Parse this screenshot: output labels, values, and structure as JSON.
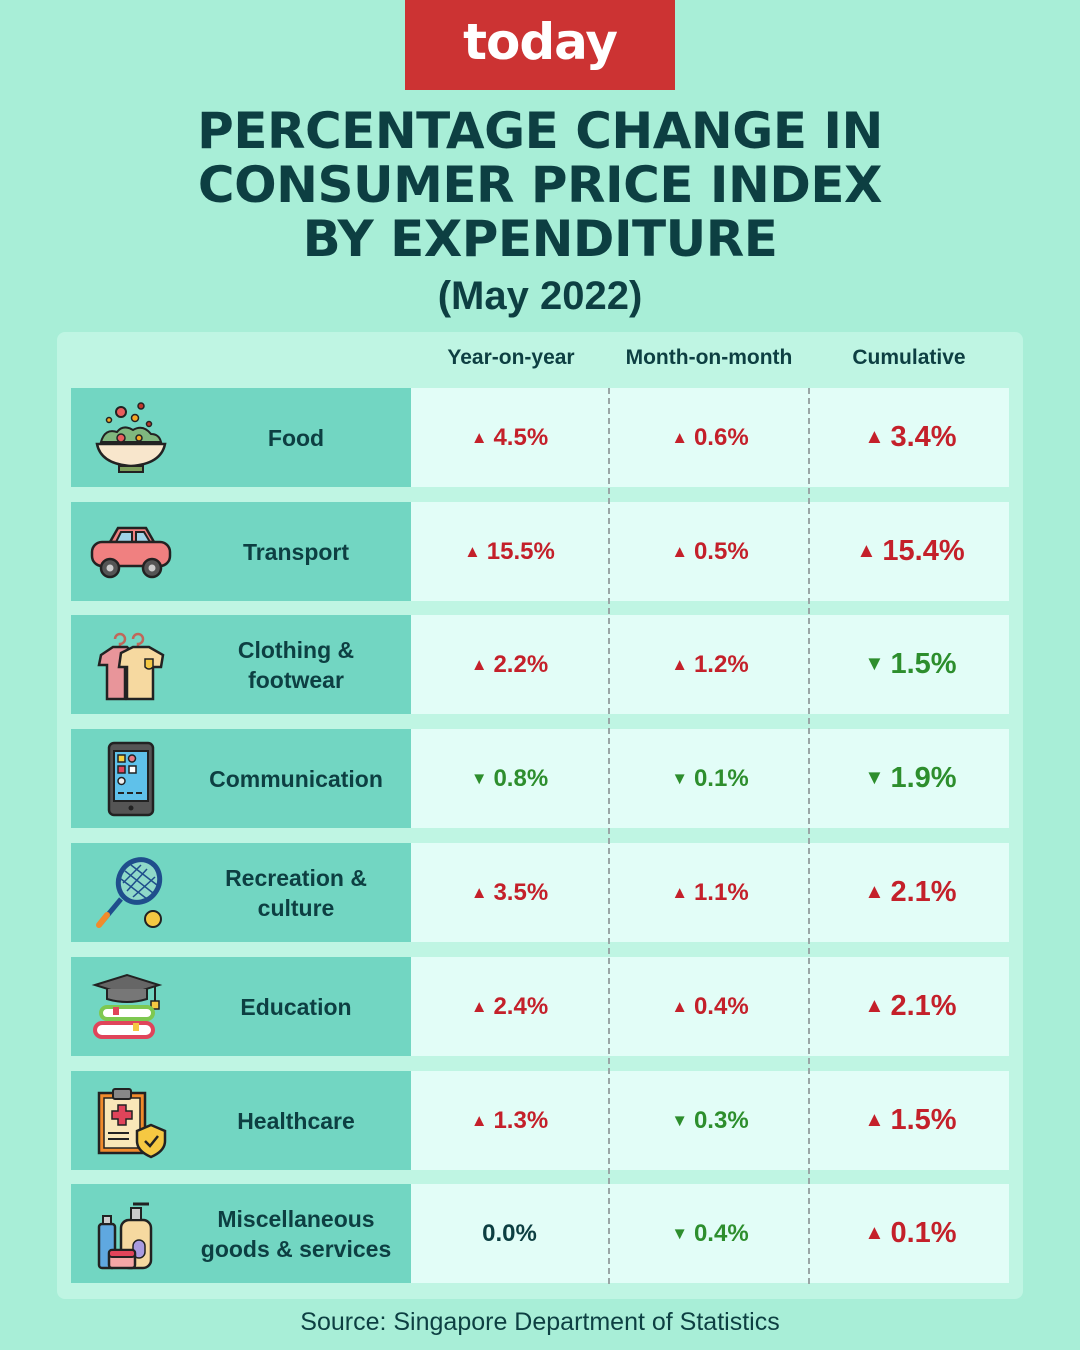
{
  "brand": {
    "logo_text": "today",
    "color": "#cc3333"
  },
  "header": {
    "title_lines": [
      "PERCENTAGE CHANGE IN",
      "CONSUMER PRICE INDEX",
      "BY EXPENDITURE"
    ],
    "subtitle": "(May 2022)"
  },
  "colors": {
    "increase": "#c4202a",
    "decrease": "#2d8e2d",
    "no_change": "#0d3f42"
  },
  "source": "Source: Singapore Department of Statistics",
  "chart_data": {
    "type": "table",
    "title": "PERCENTAGE CHANGE IN CONSUMER PRICE INDEX BY EXPENDITURE (May 2022)",
    "columns": [
      "Year-on-year",
      "Month-on-month",
      "Cumulative"
    ],
    "rows": [
      {
        "category": "Food",
        "icon": "salad-bowl-icon",
        "values": [
          {
            "text": "4.5%",
            "dir": "up",
            "value": 4.5
          },
          {
            "text": "0.6%",
            "dir": "up",
            "value": 0.6
          },
          {
            "text": "3.4%",
            "dir": "up",
            "value": 3.4
          }
        ]
      },
      {
        "category": "Transport",
        "icon": "car-icon",
        "values": [
          {
            "text": "15.5%",
            "dir": "up",
            "value": 15.5
          },
          {
            "text": "0.5%",
            "dir": "up",
            "value": 0.5
          },
          {
            "text": "15.4%",
            "dir": "up",
            "value": 15.4
          }
        ]
      },
      {
        "category": "Clothing & footwear",
        "icon": "clothes-hanger-icon",
        "values": [
          {
            "text": "2.2%",
            "dir": "up",
            "value": 2.2
          },
          {
            "text": "1.2%",
            "dir": "up",
            "value": 1.2
          },
          {
            "text": "1.5%",
            "dir": "down",
            "value": -1.5
          }
        ]
      },
      {
        "category": "Communication",
        "icon": "smartphone-icon",
        "values": [
          {
            "text": "0.8%",
            "dir": "down",
            "value": -0.8
          },
          {
            "text": "0.1%",
            "dir": "down",
            "value": -0.1
          },
          {
            "text": "1.9%",
            "dir": "down",
            "value": -1.9
          }
        ]
      },
      {
        "category": "Recreation & culture",
        "icon": "tennis-racket-icon",
        "values": [
          {
            "text": "3.5%",
            "dir": "up",
            "value": 3.5
          },
          {
            "text": "1.1%",
            "dir": "up",
            "value": 1.1
          },
          {
            "text": "2.1%",
            "dir": "up",
            "value": 2.1
          }
        ]
      },
      {
        "category": "Education",
        "icon": "books-graduation-cap-icon",
        "values": [
          {
            "text": "2.4%",
            "dir": "up",
            "value": 2.4
          },
          {
            "text": "0.4%",
            "dir": "up",
            "value": 0.4
          },
          {
            "text": "2.1%",
            "dir": "up",
            "value": 2.1
          }
        ]
      },
      {
        "category": "Healthcare",
        "icon": "medical-clipboard-shield-icon",
        "values": [
          {
            "text": "1.3%",
            "dir": "up",
            "value": 1.3
          },
          {
            "text": "0.3%",
            "dir": "down",
            "value": -0.3
          },
          {
            "text": "1.5%",
            "dir": "up",
            "value": 1.5
          }
        ]
      },
      {
        "category": "Miscellaneous goods & services",
        "icon": "toiletries-icon",
        "values": [
          {
            "text": "0.0%",
            "dir": "flat",
            "value": 0.0
          },
          {
            "text": "0.4%",
            "dir": "down",
            "value": -0.4
          },
          {
            "text": "0.1%",
            "dir": "up",
            "value": 0.1
          }
        ]
      }
    ]
  }
}
